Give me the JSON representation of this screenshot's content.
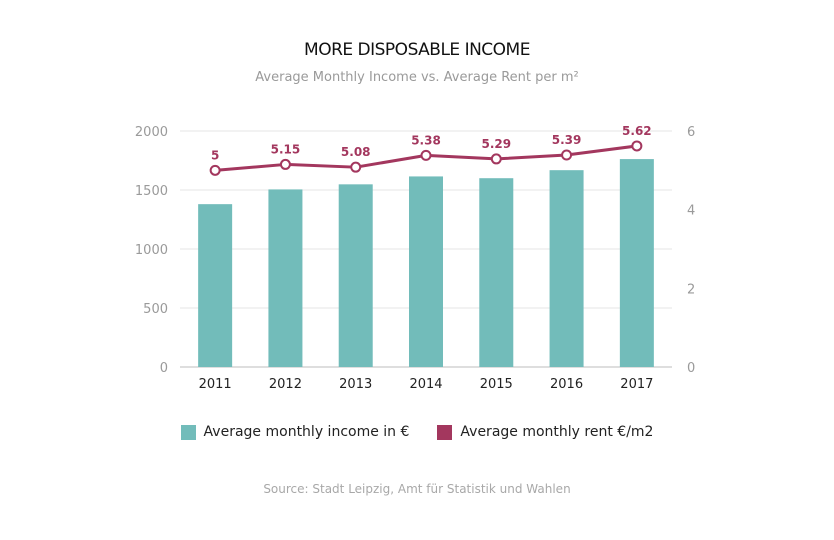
{
  "chart_data": {
    "type": "bar+line",
    "title": "MORE DISPOSABLE INCOME",
    "subtitle": "Average Monthly Income vs. Average Rent per m²",
    "categories": [
      "2011",
      "2012",
      "2013",
      "2014",
      "2015",
      "2016",
      "2017"
    ],
    "series": [
      {
        "name": "Average monthly income in €",
        "type": "bar",
        "axis": "left",
        "color": "#72bcba",
        "values": [
          1380,
          1505,
          1548,
          1615,
          1600,
          1668,
          1762
        ]
      },
      {
        "name": "Average monthly rent €/m2",
        "type": "line",
        "axis": "right",
        "color": "#a3375e",
        "values": [
          5,
          5.15,
          5.08,
          5.38,
          5.29,
          5.39,
          5.62
        ],
        "labels": [
          "5",
          "5.15",
          "5.08",
          "5.38",
          "5.29",
          "5.39",
          "5.62"
        ]
      }
    ],
    "y_left": {
      "range": [
        0,
        2000
      ],
      "ticks": [
        0,
        500,
        1000,
        1500,
        2000
      ],
      "tick_labels": [
        "0",
        "500",
        "1000",
        "1500",
        "2000"
      ]
    },
    "y_right": {
      "range": [
        0,
        6
      ],
      "ticks": [
        0,
        2,
        4,
        6
      ],
      "tick_labels": [
        "0",
        "2",
        "4",
        "6"
      ]
    },
    "grid": true,
    "legend_position": "bottom"
  },
  "source": "Source: Stadt Leipzig, Amt für Statistik und Wahlen"
}
